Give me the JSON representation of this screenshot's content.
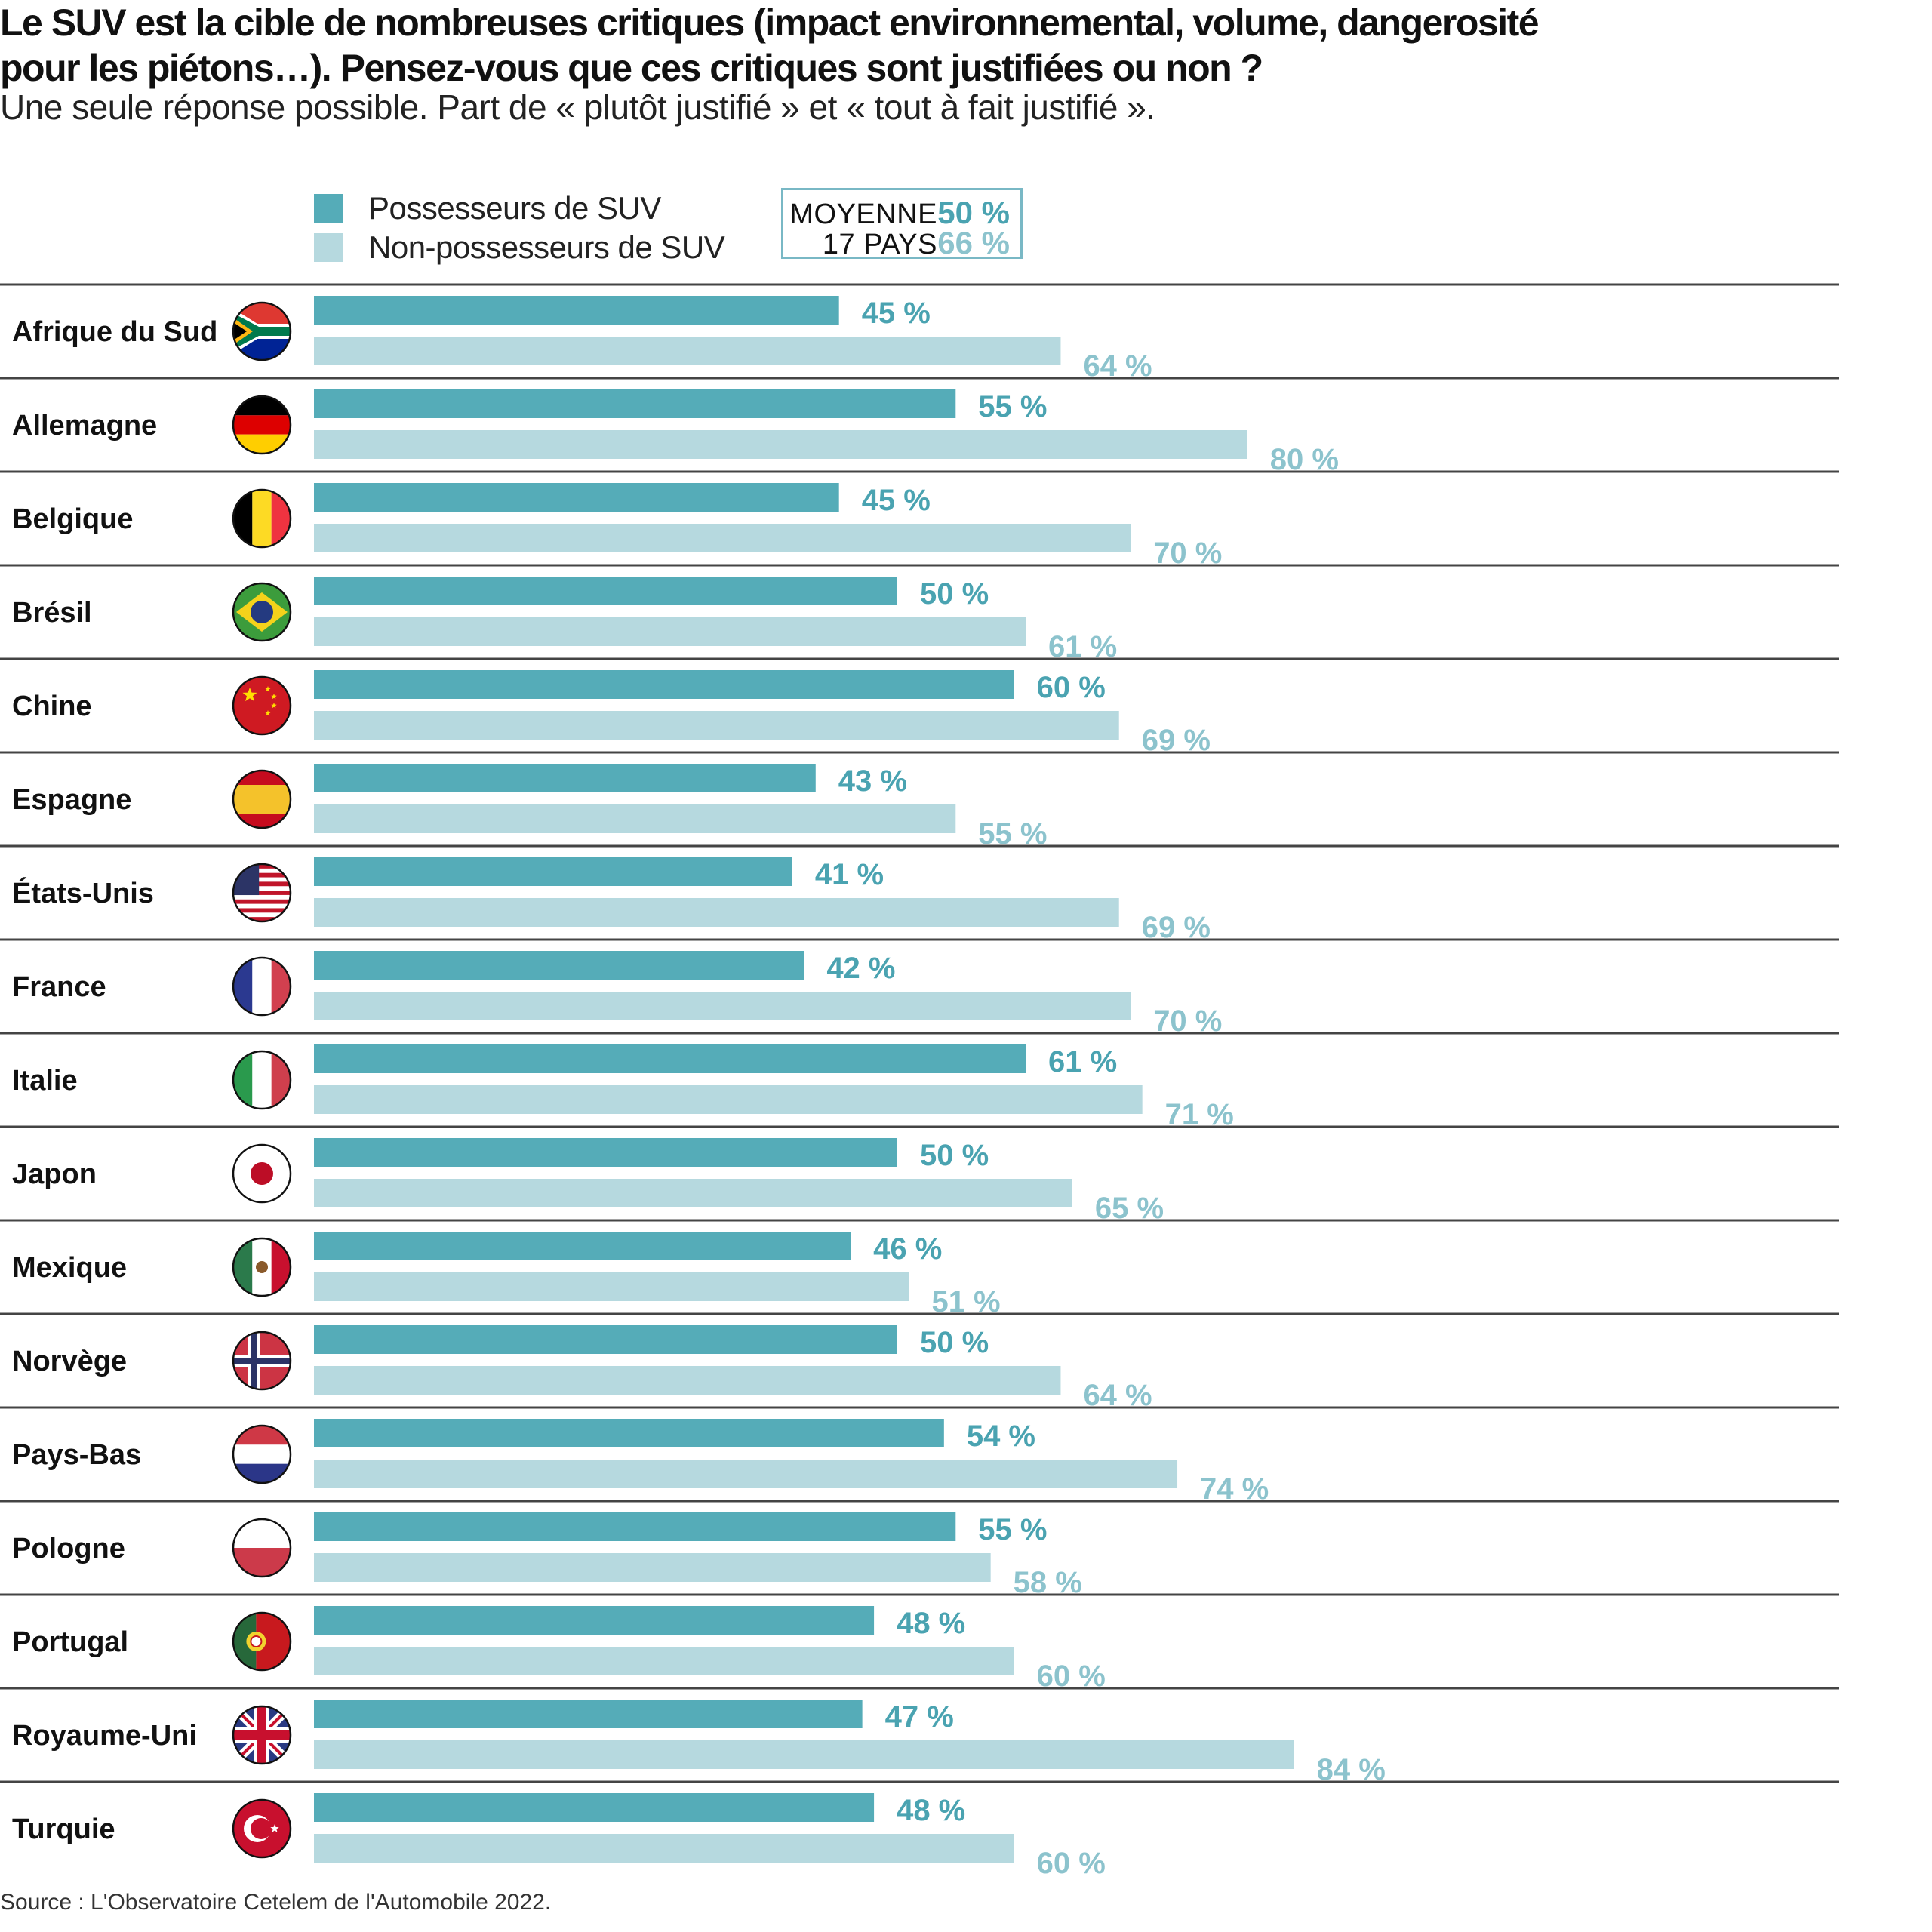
{
  "title": "Le SUV est la cible de nombreuses critiques (impact environnemental, volume, dangerosité pour les piétons…). Pensez-vous que ces critiques sont justifiées ou non ?",
  "subtitle": "Une seule réponse possible. Part de « plutôt justifié » et « tout à fait justifié ».",
  "legend": {
    "owners": "Possesseurs de SUV",
    "non_owners": "Non-possesseurs de SUV"
  },
  "average_box": {
    "line1_label": "MOYENNE",
    "line2_label": "17 PAYS",
    "owners_value": "50 %",
    "non_owners_value": "66 %"
  },
  "colors": {
    "owners": "#55acb8",
    "non_owners": "#b6d9df",
    "owners_text": "#4aa3b1",
    "non_owners_text": "#8cc3cd",
    "rule": "#444444"
  },
  "source": "Source : L'Observatoire Cetelem de l'Automobile 2022.",
  "chart_data": {
    "type": "bar",
    "orientation": "horizontal",
    "title": "Le SUV est la cible de nombreuses critiques (impact environnemental, volume, dangerosité pour les piétons…). Pensez-vous que ces critiques sont justifiées ou non ?",
    "subtitle": "Une seule réponse possible. Part de « plutôt justifié » et « tout à fait justifié ».",
    "xlabel": "",
    "ylabel": "",
    "unit": "%",
    "xlim": [
      0,
      100
    ],
    "grid": false,
    "legend_position": "top",
    "categories": [
      "Afrique du Sud",
      "Allemagne",
      "Belgique",
      "Brésil",
      "Chine",
      "Espagne",
      "États-Unis",
      "France",
      "Italie",
      "Japon",
      "Mexique",
      "Norvège",
      "Pays-Bas",
      "Pologne",
      "Portugal",
      "Royaume-Uni",
      "Turquie"
    ],
    "flags": [
      "south-africa-flag-icon",
      "germany-flag-icon",
      "belgium-flag-icon",
      "brazil-flag-icon",
      "china-flag-icon",
      "spain-flag-icon",
      "usa-flag-icon",
      "france-flag-icon",
      "italy-flag-icon",
      "japan-flag-icon",
      "mexico-flag-icon",
      "norway-flag-icon",
      "netherlands-flag-icon",
      "poland-flag-icon",
      "portugal-flag-icon",
      "uk-flag-icon",
      "turkey-flag-icon"
    ],
    "series": [
      {
        "name": "Possesseurs de SUV",
        "values": [
          45,
          55,
          45,
          50,
          60,
          43,
          41,
          42,
          61,
          50,
          46,
          50,
          54,
          55,
          48,
          47,
          48
        ]
      },
      {
        "name": "Non-possesseurs de SUV",
        "values": [
          64,
          80,
          70,
          61,
          69,
          55,
          69,
          70,
          71,
          65,
          51,
          64,
          74,
          58,
          60,
          84,
          60
        ]
      }
    ],
    "averages": {
      "label": "MOYENNE 17 PAYS",
      "Possesseurs de SUV": 50,
      "Non-possesseurs de SUV": 66
    }
  }
}
